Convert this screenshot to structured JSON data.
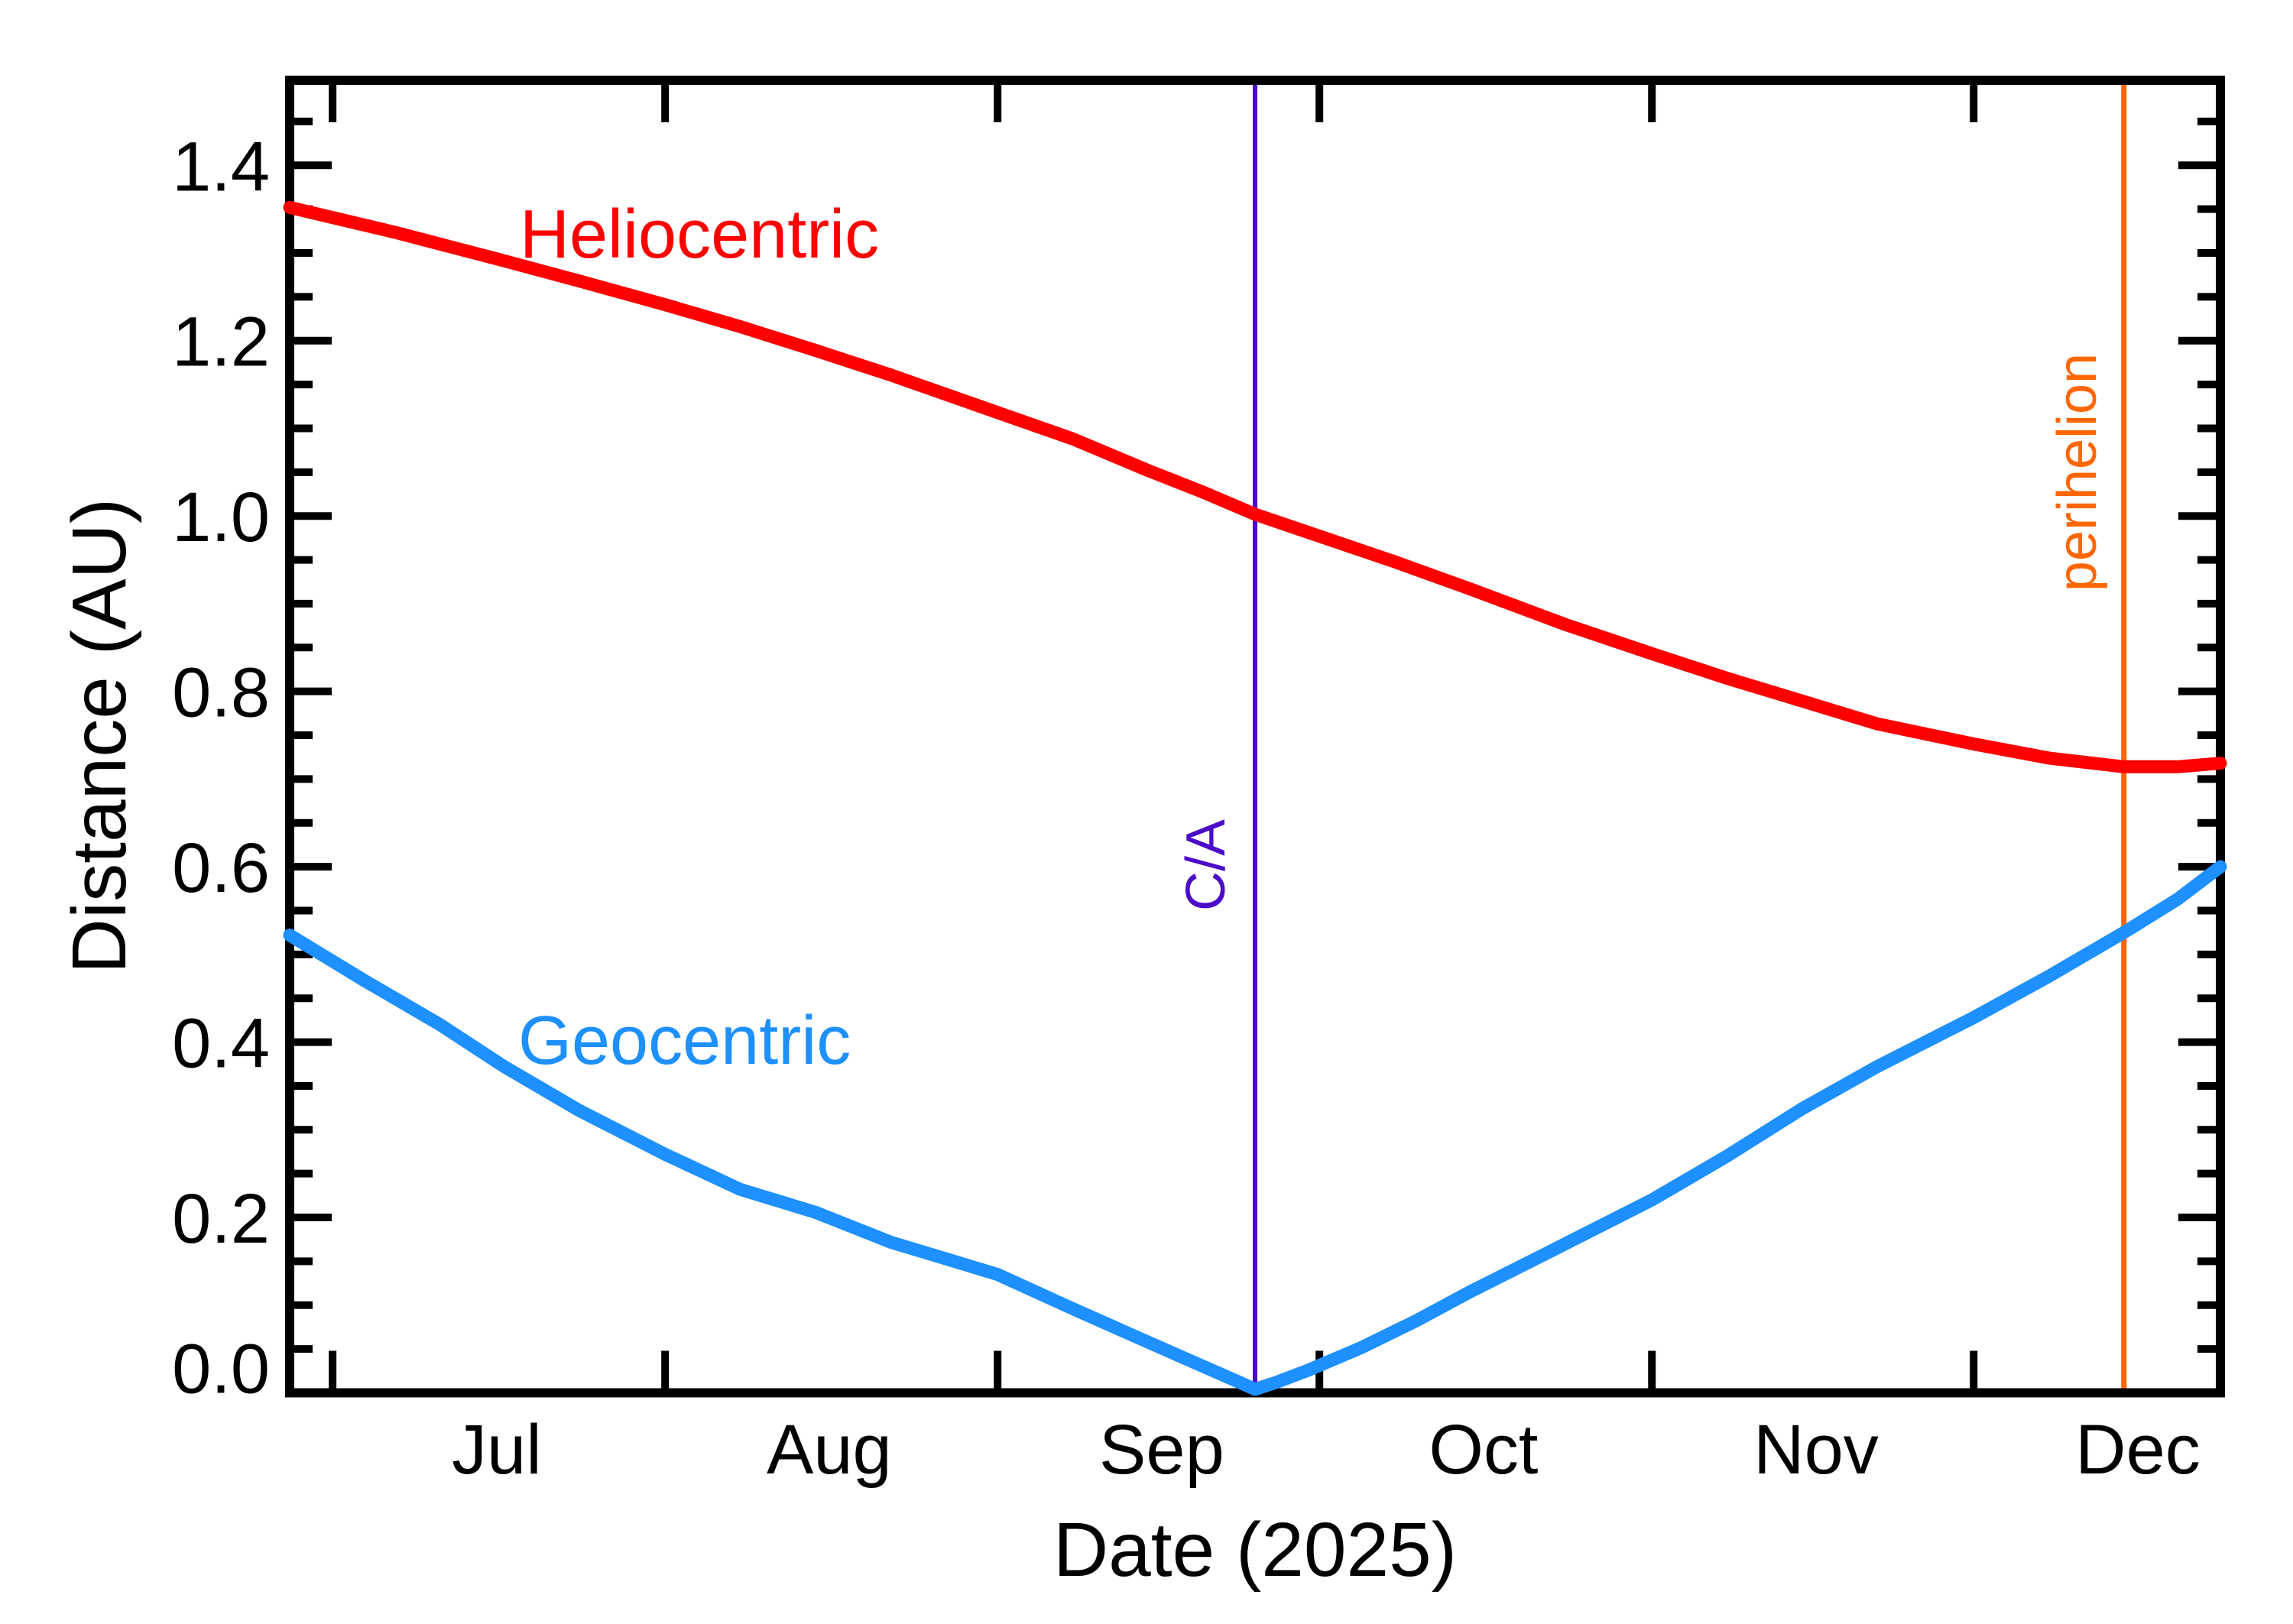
{
  "chart_data": {
    "type": "line",
    "title": "",
    "xlabel": "Date (2025)",
    "ylabel": "Distance (AU)",
    "ylim": [
      0,
      1.497
    ],
    "x_range": [
      "2025-06-27",
      "2025-12-24"
    ],
    "grid": false,
    "legend": "inline-curve-labels",
    "x_month_ticks": [
      "2025-07-01",
      "2025-08-01",
      "2025-09-01",
      "2025-10-01",
      "2025-11-01",
      "2025-12-01"
    ],
    "x_month_labels": [
      "Jul",
      "Aug",
      "Sep",
      "Oct",
      "Nov",
      "Dec"
    ],
    "y_major_ticks": [
      {
        "label": "1.4",
        "value": 1.4
      },
      {
        "label": "1.2",
        "value": 1.2
      },
      {
        "label": "1.0",
        "value": 1.0
      },
      {
        "label": "0.8",
        "value": 0.8
      },
      {
        "label": "0.6",
        "value": 0.6
      },
      {
        "label": "0.4",
        "value": 0.4
      },
      {
        "label": "0.2",
        "value": 0.2
      },
      {
        "label": "0.0",
        "value": 0.0
      }
    ],
    "y_minor_step": 0.05,
    "axis_color": "#000000",
    "series": [
      {
        "name": "Heliocentric",
        "color": "#FF0000",
        "points": [
          [
            "2025-06-27",
            1.352
          ],
          [
            "2025-07-07",
            1.323
          ],
          [
            "2025-07-17",
            1.291
          ],
          [
            "2025-07-24",
            1.268
          ],
          [
            "2025-08-01",
            1.241
          ],
          [
            "2025-08-08",
            1.216
          ],
          [
            "2025-08-15",
            1.189
          ],
          [
            "2025-08-22",
            1.161
          ],
          [
            "2025-09-01",
            1.118
          ],
          [
            "2025-09-08",
            1.088
          ],
          [
            "2025-09-15",
            1.052
          ],
          [
            "2025-09-20",
            1.028
          ],
          [
            "2025-09-25",
            1.002
          ],
          [
            "2025-10-01",
            0.977
          ],
          [
            "2025-10-08",
            0.948
          ],
          [
            "2025-10-15",
            0.917
          ],
          [
            "2025-10-24",
            0.876
          ],
          [
            "2025-11-01",
            0.843
          ],
          [
            "2025-11-08",
            0.815
          ],
          [
            "2025-11-15",
            0.789
          ],
          [
            "2025-11-22",
            0.763
          ],
          [
            "2025-12-01",
            0.74
          ],
          [
            "2025-12-08",
            0.724
          ],
          [
            "2025-12-15",
            0.714
          ],
          [
            "2025-12-20",
            0.714
          ],
          [
            "2025-12-24",
            0.718
          ]
        ]
      },
      {
        "name": "Geocentric",
        "color": "#1E90FF",
        "points": [
          [
            "2025-06-27",
            0.522
          ],
          [
            "2025-07-04",
            0.47
          ],
          [
            "2025-07-11",
            0.42
          ],
          [
            "2025-07-17",
            0.372
          ],
          [
            "2025-07-24",
            0.322
          ],
          [
            "2025-08-01",
            0.272
          ],
          [
            "2025-08-08",
            0.232
          ],
          [
            "2025-08-15",
            0.206
          ],
          [
            "2025-08-22",
            0.172
          ],
          [
            "2025-09-01",
            0.135
          ],
          [
            "2025-09-08",
            0.096
          ],
          [
            "2025-09-15",
            0.058
          ],
          [
            "2025-09-20",
            0.031
          ],
          [
            "2025-09-23",
            0.015
          ],
          [
            "2025-09-25",
            0.004
          ],
          [
            "2025-09-27",
            0.012
          ],
          [
            "2025-09-30",
            0.026
          ],
          [
            "2025-10-05",
            0.052
          ],
          [
            "2025-10-10",
            0.082
          ],
          [
            "2025-10-15",
            0.115
          ],
          [
            "2025-10-22",
            0.158
          ],
          [
            "2025-11-01",
            0.22
          ],
          [
            "2025-11-08",
            0.27
          ],
          [
            "2025-11-15",
            0.324
          ],
          [
            "2025-11-22",
            0.372
          ],
          [
            "2025-12-01",
            0.428
          ],
          [
            "2025-12-08",
            0.475
          ],
          [
            "2025-12-15",
            0.525
          ],
          [
            "2025-12-20",
            0.563
          ],
          [
            "2025-12-24",
            0.6
          ]
        ]
      }
    ],
    "vlines": [
      {
        "label": "C/A",
        "date": "2025-09-25",
        "color": "#4B0BC8"
      },
      {
        "label": "perihelion",
        "date": "2025-12-15",
        "color": "#FF6600"
      }
    ]
  }
}
